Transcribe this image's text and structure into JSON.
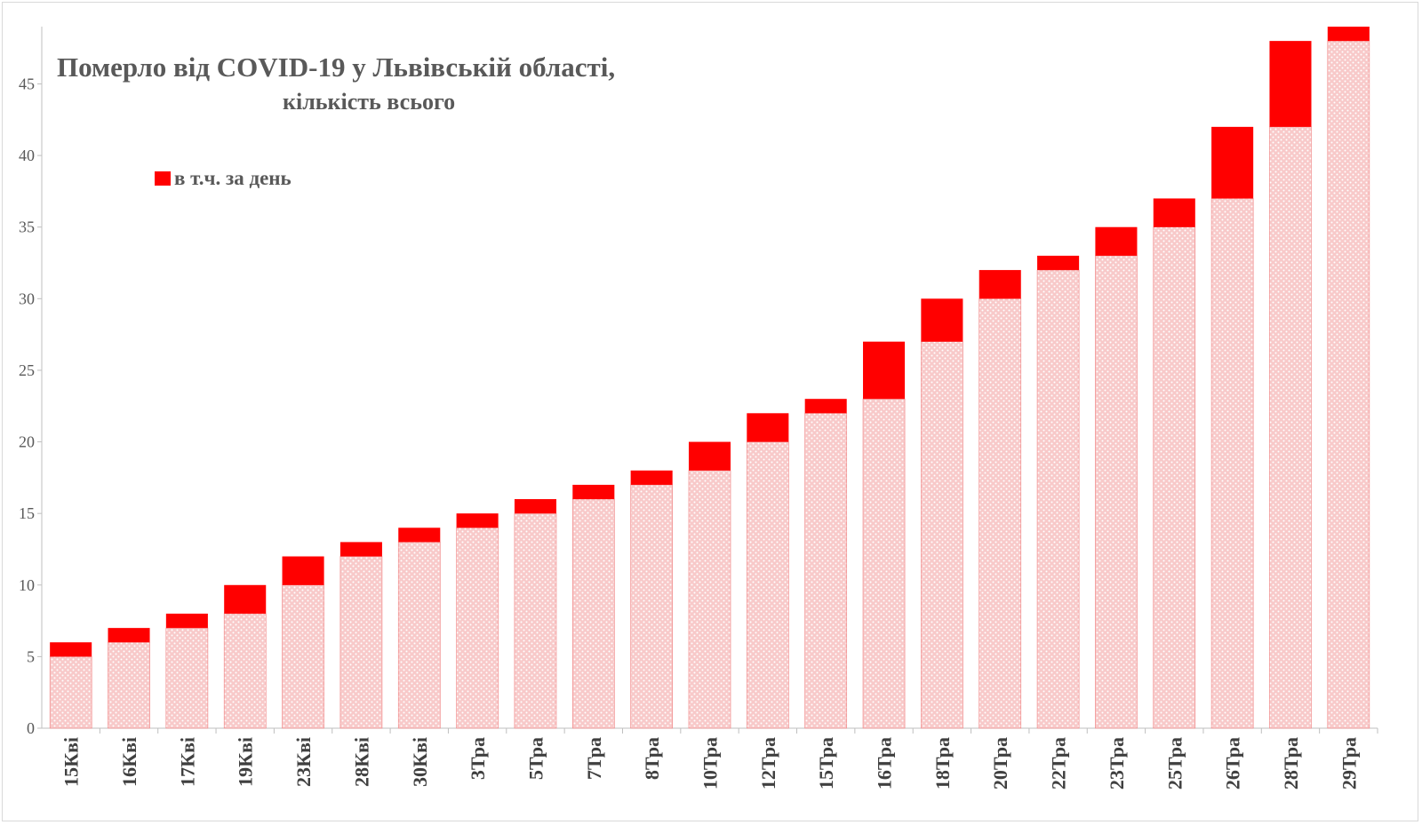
{
  "chart_data": {
    "type": "bar",
    "stacked": true,
    "title": "Померло від COVID-19 у Львівській області,",
    "subtitle": "кількість всього",
    "categories": [
      "15Кві",
      "16Кві",
      "17Кві",
      "19Кві",
      "23Кві",
      "28Кві",
      "30Кві",
      "3Тра",
      "5Тра",
      "7Тра",
      "8Тра",
      "10Тра",
      "12Тра",
      "15Тра",
      "16Тра",
      "18Тра",
      "20Тра",
      "22Тра",
      "23Тра",
      "25Тра",
      "26Тра",
      "28Тра",
      "29Тра"
    ],
    "series": [
      {
        "values": [
          5,
          6,
          7,
          8,
          10,
          12,
          13,
          14,
          15,
          16,
          17,
          18,
          20,
          22,
          23,
          27,
          30,
          32,
          33,
          35,
          37,
          42,
          48
        ],
        "color": "#f4a6a6",
        "pattern": "hatched"
      },
      {
        "name": "в т.ч. за день",
        "values": [
          1,
          1,
          1,
          2,
          2,
          1,
          1,
          1,
          1,
          1,
          1,
          2,
          2,
          1,
          4,
          3,
          2,
          1,
          2,
          2,
          5,
          6,
          1
        ],
        "color": "#ff0000"
      }
    ],
    "totals": [
      6,
      7,
      8,
      10,
      12,
      13,
      14,
      15,
      16,
      17,
      18,
      20,
      22,
      23,
      27,
      30,
      32,
      33,
      35,
      37,
      42,
      48,
      49
    ],
    "ylim": [
      0,
      49
    ],
    "yticks": [
      0,
      5,
      10,
      15,
      20,
      25,
      30,
      35,
      40,
      45
    ],
    "xlabel": "",
    "ylabel": "",
    "grid": false,
    "legend": "top-left"
  }
}
